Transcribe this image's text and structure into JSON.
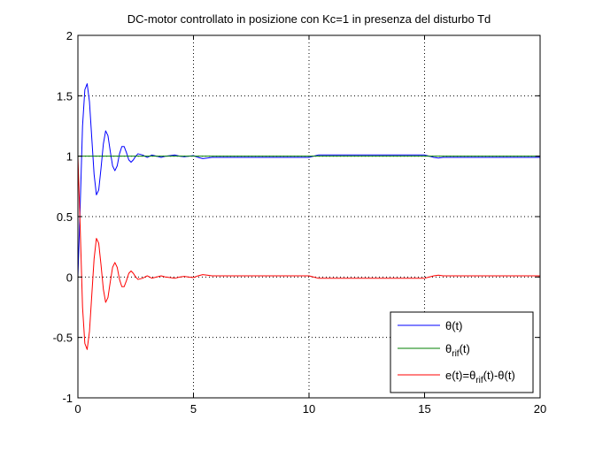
{
  "chart_data": {
    "type": "line",
    "title": "DC-motor controllato in posizione con Kc=1 in presenza del disturbo Td",
    "xlabel": "",
    "ylabel": "",
    "xlim": [
      0,
      20
    ],
    "ylim": [
      -1,
      2
    ],
    "x_ticks": [
      0,
      5,
      10,
      15,
      20
    ],
    "x_tick_labels": [
      "0",
      "5",
      "10",
      "15",
      "20"
    ],
    "y_ticks": [
      -1,
      -0.5,
      0,
      0.5,
      1,
      1.5,
      2
    ],
    "y_tick_labels": [
      "-1",
      "-0.5",
      "0",
      "0.5",
      "1",
      "1.5",
      "2"
    ],
    "grid": true,
    "legend_position": "bottom-right",
    "series": [
      {
        "name": "θ(t)",
        "legend": {
          "main": "θ(t)"
        },
        "color": "#0000ff",
        "x": [
          0,
          0.1,
          0.2,
          0.3,
          0.4,
          0.5,
          0.6,
          0.7,
          0.8,
          0.9,
          1.0,
          1.1,
          1.2,
          1.3,
          1.4,
          1.5,
          1.6,
          1.7,
          1.8,
          1.9,
          2.0,
          2.1,
          2.2,
          2.3,
          2.4,
          2.5,
          2.6,
          2.8,
          3.0,
          3.2,
          3.4,
          3.6,
          3.8,
          4.0,
          4.2,
          4.4,
          4.6,
          4.8,
          5.0,
          5.2,
          5.4,
          5.6,
          5.8,
          6.0,
          7,
          8,
          9,
          10.0,
          10.2,
          10.4,
          10.6,
          10.8,
          11.0,
          11.5,
          12,
          13,
          14,
          15.0,
          15.2,
          15.4,
          15.6,
          15.8,
          16.0,
          16.5,
          17,
          18,
          19,
          20
        ],
        "y": [
          0.0,
          0.6,
          1.25,
          1.55,
          1.6,
          1.45,
          1.15,
          0.85,
          0.68,
          0.72,
          0.9,
          1.1,
          1.21,
          1.17,
          1.04,
          0.92,
          0.88,
          0.92,
          1.02,
          1.08,
          1.08,
          1.03,
          0.97,
          0.95,
          0.97,
          1.0,
          1.02,
          1.01,
          0.99,
          1.01,
          1.0,
          0.99,
          1.0,
          1.005,
          1.01,
          1.0,
          0.995,
          1.0,
          1.005,
          0.99,
          0.98,
          0.985,
          0.99,
          0.99,
          0.99,
          0.99,
          0.99,
          0.99,
          1.0,
          1.01,
          1.01,
          1.01,
          1.01,
          1.01,
          1.01,
          1.01,
          1.01,
          1.01,
          1.0,
          0.99,
          0.985,
          0.99,
          0.99,
          0.99,
          0.99,
          0.99,
          0.99,
          0.99
        ]
      },
      {
        "name": "θrif(t)",
        "legend": {
          "main": "θ",
          "sub": "rif",
          "rest": "(t)"
        },
        "color": "#008000",
        "x": [
          0,
          20
        ],
        "y": [
          1.0,
          1.0
        ]
      },
      {
        "name": "e(t)=θrif(t)-θ(t)",
        "legend": {
          "main": "e(t)=θ",
          "sub": "rif",
          "rest": "(t)-θ(t)"
        },
        "color": "#ff0000",
        "x": [
          0,
          0.1,
          0.2,
          0.3,
          0.4,
          0.5,
          0.6,
          0.7,
          0.8,
          0.9,
          1.0,
          1.1,
          1.2,
          1.3,
          1.4,
          1.5,
          1.6,
          1.7,
          1.8,
          1.9,
          2.0,
          2.1,
          2.2,
          2.3,
          2.4,
          2.5,
          2.6,
          2.8,
          3.0,
          3.2,
          3.4,
          3.6,
          3.8,
          4.0,
          4.2,
          4.4,
          4.6,
          4.8,
          5.0,
          5.2,
          5.4,
          5.6,
          5.8,
          6.0,
          7,
          8,
          9,
          10.0,
          10.2,
          10.4,
          10.6,
          10.8,
          11.0,
          11.5,
          12,
          13,
          14,
          15.0,
          15.2,
          15.4,
          15.6,
          15.8,
          16.0,
          16.5,
          17,
          18,
          19,
          20
        ],
        "y": [
          1.0,
          0.4,
          -0.25,
          -0.55,
          -0.6,
          -0.45,
          -0.15,
          0.15,
          0.32,
          0.28,
          0.1,
          -0.1,
          -0.21,
          -0.17,
          -0.04,
          0.08,
          0.12,
          0.08,
          -0.02,
          -0.08,
          -0.08,
          -0.03,
          0.03,
          0.05,
          0.03,
          0.0,
          -0.02,
          -0.01,
          0.01,
          -0.01,
          0.0,
          0.01,
          0.0,
          -0.005,
          -0.01,
          0.0,
          0.005,
          0.0,
          -0.005,
          0.01,
          0.02,
          0.015,
          0.01,
          0.01,
          0.01,
          0.01,
          0.01,
          0.01,
          0.0,
          -0.01,
          -0.01,
          -0.01,
          -0.01,
          -0.01,
          -0.01,
          -0.01,
          -0.01,
          -0.01,
          0.0,
          0.01,
          0.015,
          0.01,
          0.01,
          0.01,
          0.01,
          0.01,
          0.01,
          0.01
        ]
      }
    ]
  }
}
